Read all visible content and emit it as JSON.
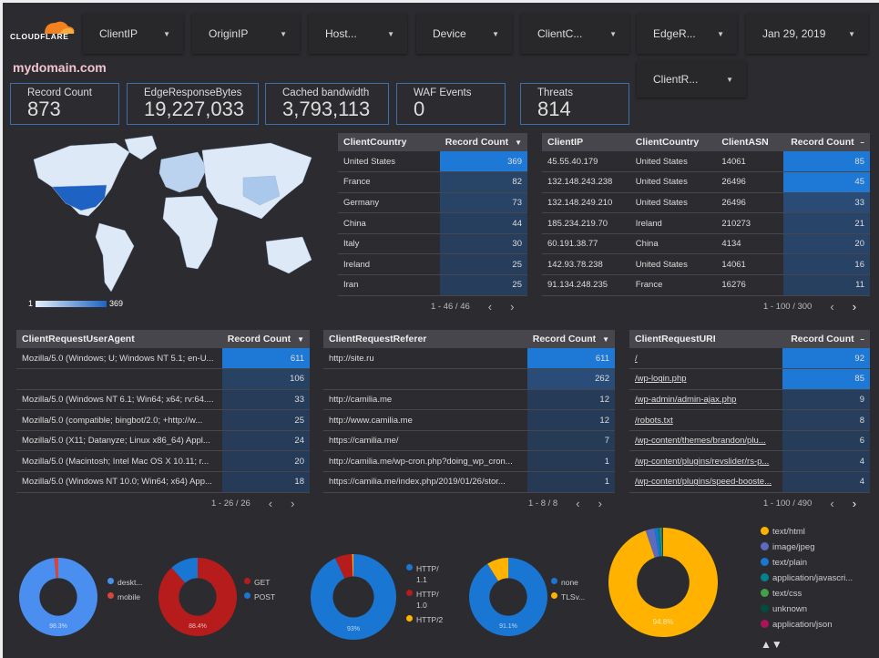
{
  "logo": {
    "text": "CLOUDFLARE"
  },
  "filters": [
    {
      "label": "ClientIP"
    },
    {
      "label": "OriginIP"
    },
    {
      "label": "Host..."
    },
    {
      "label": "Device"
    },
    {
      "label": "ClientC..."
    },
    {
      "label": "EdgeR..."
    },
    {
      "label": "Jan 29, 2019"
    },
    {
      "label": "ClientR..."
    }
  ],
  "title": "mydomain.com",
  "kpis": [
    {
      "label": "Record Count",
      "value": "873"
    },
    {
      "label": "EdgeResponseBytes",
      "value": "19,227,033"
    },
    {
      "label": "Cached bandwidth",
      "value": "3,793,113"
    },
    {
      "label": "WAF Events",
      "value": "0"
    },
    {
      "label": "Threats",
      "value": "814"
    }
  ],
  "map": {
    "legend_min": "1",
    "legend_max": "369",
    "colors": {
      "low": "#e3eef9",
      "high": "#1e63c4"
    }
  },
  "colors": {
    "bar_top": "#1e78d6",
    "bar_low": "#263a55"
  },
  "country_table": {
    "headers": [
      "ClientCountry",
      "Record Count"
    ],
    "sort_icon": "▼",
    "rows": [
      [
        "United States",
        "369"
      ],
      [
        "France",
        "82"
      ],
      [
        "Germany",
        "73"
      ],
      [
        "China",
        "44"
      ],
      [
        "Italy",
        "30"
      ],
      [
        "Ireland",
        "25"
      ],
      [
        "Iran",
        "25"
      ]
    ],
    "max": 369,
    "pager": "1 - 46 / 46"
  },
  "ip_table": {
    "headers": [
      "ClientIP",
      "ClientCountry",
      "ClientASN",
      "Record Count"
    ],
    "sort_icon": "–",
    "rows": [
      [
        "45.55.40.179",
        "United States",
        "14061",
        "85"
      ],
      [
        "132.148.243.238",
        "United States",
        "26496",
        "45"
      ],
      [
        "132.148.249.210",
        "United States",
        "26496",
        "33"
      ],
      [
        "185.234.219.70",
        "Ireland",
        "210273",
        "21"
      ],
      [
        "60.191.38.77",
        "China",
        "4134",
        "20"
      ],
      [
        "142.93.78.238",
        "United States",
        "14061",
        "16"
      ],
      [
        "91.134.248.235",
        "France",
        "16276",
        "11"
      ]
    ],
    "max": 85,
    "pager": "1 - 100 / 300"
  },
  "ua_table": {
    "headers": [
      "ClientRequestUserAgent",
      "Record Count"
    ],
    "sort_icon": "▼",
    "rows": [
      [
        "Mozilla/5.0 (Windows; U; Windows NT 5.1; en-U...",
        "611"
      ],
      [
        "",
        "106"
      ],
      [
        "Mozilla/5.0 (Windows NT 6.1; Win64; x64; rv:64....",
        "33"
      ],
      [
        "Mozilla/5.0 (compatible; bingbot/2.0; +http://w...",
        "25"
      ],
      [
        "Mozilla/5.0 (X11; Datanyze; Linux x86_64) Appl...",
        "24"
      ],
      [
        "Mozilla/5.0 (Macintosh; Intel Mac OS X 10.11; r...",
        "20"
      ],
      [
        "Mozilla/5.0 (Windows NT 10.0; Win64; x64) App...",
        "18"
      ]
    ],
    "max": 611,
    "pager": "1 - 26 / 26"
  },
  "ref_table": {
    "headers": [
      "ClientRequestReferer",
      "Record Count"
    ],
    "sort_icon": "▼",
    "rows": [
      [
        "http://site.ru",
        "611"
      ],
      [
        "",
        "262"
      ],
      [
        "http://camilia.me",
        "12"
      ],
      [
        "http://www.camilia.me",
        "12"
      ],
      [
        "https://camilia.me/",
        "7"
      ],
      [
        "http://camilia.me/wp-cron.php?doing_wp_cron...",
        "1"
      ],
      [
        "https://camilia.me/index.php/2019/01/26/stor...",
        "1"
      ]
    ],
    "max": 611,
    "pager": "1 - 8 / 8"
  },
  "uri_table": {
    "headers": [
      "ClientRequestURI",
      "Record Count"
    ],
    "sort_icon": "–",
    "rows": [
      [
        "/",
        "92"
      ],
      [
        "/wp-login.php",
        "85"
      ],
      [
        "/wp-admin/admin-ajax.php",
        "9"
      ],
      [
        "/robots.txt",
        "8"
      ],
      [
        "/wp-content/themes/brandon/plu...",
        "6"
      ],
      [
        "/wp-content/plugins/revslider/rs-p...",
        "4"
      ],
      [
        "/wp-content/plugins/speed-booste...",
        "4"
      ]
    ],
    "max": 92,
    "pager": "1 - 100 / 490"
  },
  "chart_data": [
    {
      "type": "pie",
      "donut": true,
      "categories": [
        "deskt...",
        "mobile"
      ],
      "values": [
        98.3,
        1.7
      ],
      "colors": [
        "#4a8ff0",
        "#d9453b"
      ],
      "label": "98.3%"
    },
    {
      "type": "pie",
      "donut": true,
      "categories": [
        "GET",
        "POST"
      ],
      "values": [
        88.4,
        11.6
      ],
      "colors": [
        "#b71c1c",
        "#1976d2"
      ],
      "label": "88.4%"
    },
    {
      "type": "pie",
      "donut": true,
      "categories": [
        "HTTP/\n1.1",
        "HTTP/\n1.0",
        "HTTP/2"
      ],
      "values": [
        93,
        6.5,
        0.5
      ],
      "colors": [
        "#1976d2",
        "#b71c1c",
        "#ffb300"
      ],
      "label": "93%"
    },
    {
      "type": "pie",
      "donut": true,
      "categories": [
        "none",
        "TLSv..."
      ],
      "values": [
        91.1,
        8.9
      ],
      "colors": [
        "#1976d2",
        "#ffb300"
      ],
      "label": "91.1%"
    },
    {
      "type": "pie",
      "donut": true,
      "categories": [
        "text/html",
        "image/jpeg",
        "text/plain",
        "application/javascri...",
        "text/css",
        "unknown",
        "application/json"
      ],
      "values": [
        94.8,
        2.6,
        1.0,
        0.7,
        0.5,
        0.3,
        0.1
      ],
      "colors": [
        "#ffb300",
        "#5c6bc0",
        "#1976d2",
        "#00838f",
        "#43a047",
        "#004d40",
        "#ad1457"
      ],
      "label": "94.8%"
    }
  ],
  "legend_pager": "▲▼"
}
